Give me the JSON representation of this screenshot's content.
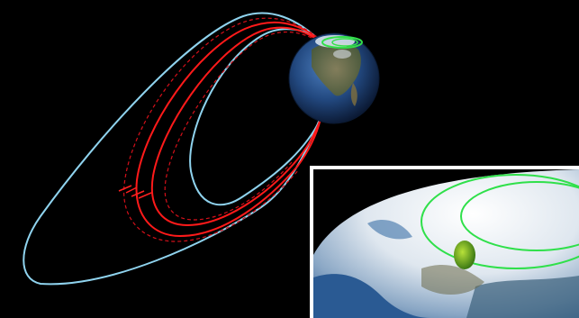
{
  "scene": {
    "description_free": true,
    "colors": {
      "background": "#000000",
      "outer_field_line": "#8fd3ee",
      "inner_field_line": "#8fd3ee",
      "field_line_highlight": "#ff1a1a",
      "dashed_field_line": "#d4101a",
      "auroral_oval": "#33e04a",
      "inset_border": "#ffffff",
      "ocean": "#1f4a86",
      "ice": "#dfe8f2",
      "land": "#6b6a48",
      "aurora_patch": "#7fc41f"
    }
  },
  "inset": {
    "colors": {
      "space": "#000000",
      "ice": "#e3ebf2",
      "ocean": "#2a5a93",
      "oval": "#2fe04a"
    }
  }
}
